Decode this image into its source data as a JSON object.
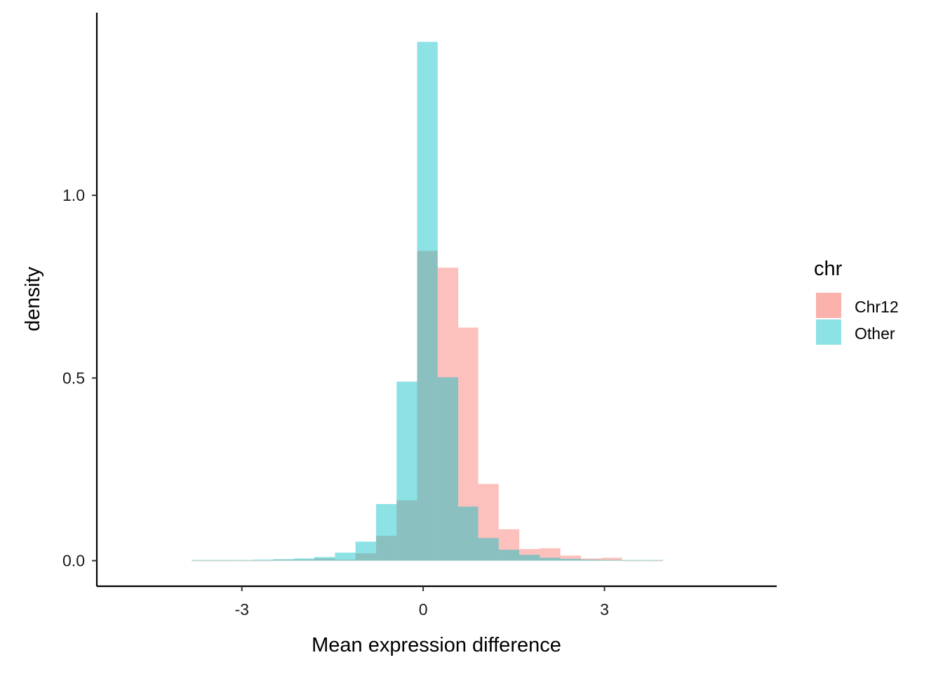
{
  "chart_data": {
    "type": "bar",
    "subtype": "overlaid-histogram",
    "xlabel": "Mean expression difference",
    "ylabel": "density",
    "xlim": [
      -5.4,
      5.85
    ],
    "ylim": [
      -0.07,
      1.5
    ],
    "xticks": [
      -3,
      0,
      3
    ],
    "xtick_labels": [
      "-3",
      "0",
      "3"
    ],
    "yticks": [
      0.0,
      0.5,
      1.0
    ],
    "ytick_labels": [
      "0.0",
      "0.5",
      "1.0"
    ],
    "grid": false,
    "legend": {
      "title": "chr",
      "placement": "right",
      "entries": [
        {
          "label": "Chr12",
          "color": "#F8766D"
        },
        {
          "label": "Other",
          "color": "#00BFC4"
        }
      ]
    },
    "bar_opacity": 0.45,
    "bins": [
      {
        "x0": -3.83,
        "x1": -3.49,
        "chr12": 0.0,
        "other": 0.002
      },
      {
        "x0": -3.49,
        "x1": -3.15,
        "chr12": 0.0,
        "other": 0.002
      },
      {
        "x0": -3.15,
        "x1": -2.81,
        "chr12": 0.0,
        "other": 0.002
      },
      {
        "x0": -2.81,
        "x1": -2.48,
        "chr12": 0.0,
        "other": 0.003
      },
      {
        "x0": -2.48,
        "x1": -2.14,
        "chr12": 0.003,
        "other": 0.004
      },
      {
        "x0": -2.14,
        "x1": -1.8,
        "chr12": 0.003,
        "other": 0.006
      },
      {
        "x0": -1.8,
        "x1": -1.46,
        "chr12": 0.006,
        "other": 0.01
      },
      {
        "x0": -1.46,
        "x1": -1.12,
        "chr12": 0.003,
        "other": 0.022
      },
      {
        "x0": -1.12,
        "x1": -0.78,
        "chr12": 0.02,
        "other": 0.052
      },
      {
        "x0": -0.78,
        "x1": -0.44,
        "chr12": 0.068,
        "other": 0.155
      },
      {
        "x0": -0.44,
        "x1": -0.1,
        "chr12": 0.165,
        "other": 0.49
      },
      {
        "x0": -0.1,
        "x1": 0.24,
        "chr12": 0.848,
        "other": 1.42
      },
      {
        "x0": 0.24,
        "x1": 0.58,
        "chr12": 0.802,
        "other": 0.502
      },
      {
        "x0": 0.58,
        "x1": 0.91,
        "chr12": 0.638,
        "other": 0.148
      },
      {
        "x0": 0.91,
        "x1": 1.25,
        "chr12": 0.21,
        "other": 0.062
      },
      {
        "x0": 1.25,
        "x1": 1.59,
        "chr12": 0.086,
        "other": 0.03
      },
      {
        "x0": 1.59,
        "x1": 1.93,
        "chr12": 0.032,
        "other": 0.016
      },
      {
        "x0": 1.93,
        "x1": 2.27,
        "chr12": 0.034,
        "other": 0.008
      },
      {
        "x0": 2.27,
        "x1": 2.61,
        "chr12": 0.014,
        "other": 0.005
      },
      {
        "x0": 2.61,
        "x1": 2.95,
        "chr12": 0.006,
        "other": 0.003
      },
      {
        "x0": 2.95,
        "x1": 3.29,
        "chr12": 0.008,
        "other": 0.002
      },
      {
        "x0": 3.29,
        "x1": 3.63,
        "chr12": 0.0,
        "other": 0.002
      },
      {
        "x0": 3.63,
        "x1": 3.97,
        "chr12": 0.0,
        "other": 0.002
      }
    ]
  }
}
